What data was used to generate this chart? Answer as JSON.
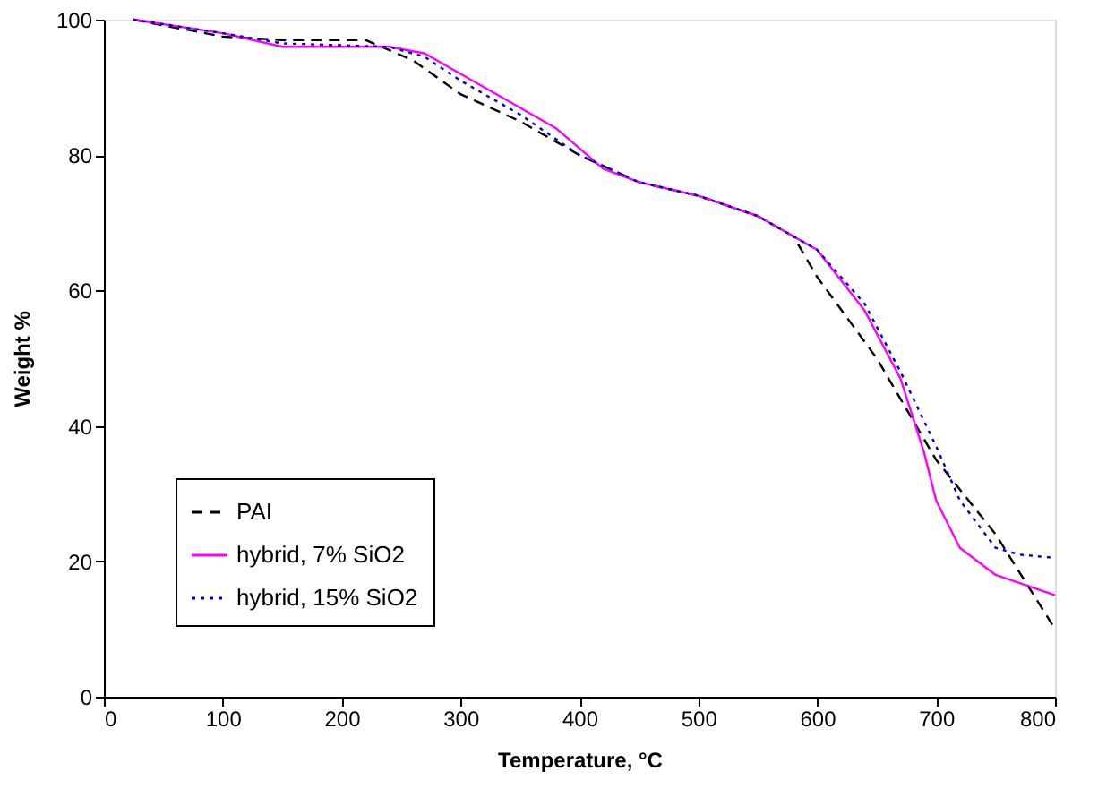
{
  "chart_data": {
    "type": "line",
    "xlabel": "Temperature, °C",
    "ylabel": "Weight %",
    "xlim": [
      0,
      800
    ],
    "xticks": [
      0,
      100,
      200,
      300,
      400,
      500,
      600,
      700,
      800
    ],
    "ylim": [
      0,
      100
    ],
    "yticks": [
      0,
      20,
      40,
      60,
      80,
      100
    ],
    "grid": false,
    "legend": "bottom left",
    "marker": "none",
    "series": [
      {
        "name": "PAI",
        "color": "#000000",
        "line_style": "dashed",
        "x": [
          25,
          100,
          150,
          220,
          260,
          300,
          350,
          400,
          450,
          500,
          550,
          580,
          600,
          650,
          680,
          700,
          750,
          800
        ],
        "values": [
          100,
          97.5,
          97,
          97,
          94,
          89,
          85,
          80,
          76,
          74,
          71,
          68,
          62,
          50,
          41,
          35,
          24,
          10
        ]
      },
      {
        "name": "hybrid, 7% SiO2",
        "color": "#ff00ff",
        "line_style": "solid",
        "x": [
          25,
          100,
          150,
          240,
          270,
          300,
          350,
          380,
          420,
          450,
          500,
          550,
          600,
          640,
          670,
          690,
          700,
          720,
          750,
          800
        ],
        "values": [
          100,
          98,
          96,
          96,
          95,
          92,
          87,
          84,
          78,
          76,
          74,
          71,
          66,
          57,
          47,
          36,
          29,
          22,
          18,
          15
        ]
      },
      {
        "name": "hybrid, 15% SiO2",
        "color": "#0000cc",
        "line_style": "dotted",
        "x": [
          25,
          100,
          150,
          240,
          270,
          300,
          350,
          400,
          450,
          500,
          550,
          600,
          640,
          670,
          700,
          720,
          750,
          770,
          800
        ],
        "values": [
          100,
          98,
          96.5,
          96,
          94.5,
          91,
          86,
          80,
          76,
          74,
          71,
          66,
          58,
          48,
          37,
          29,
          22,
          21,
          20.5
        ]
      }
    ]
  }
}
